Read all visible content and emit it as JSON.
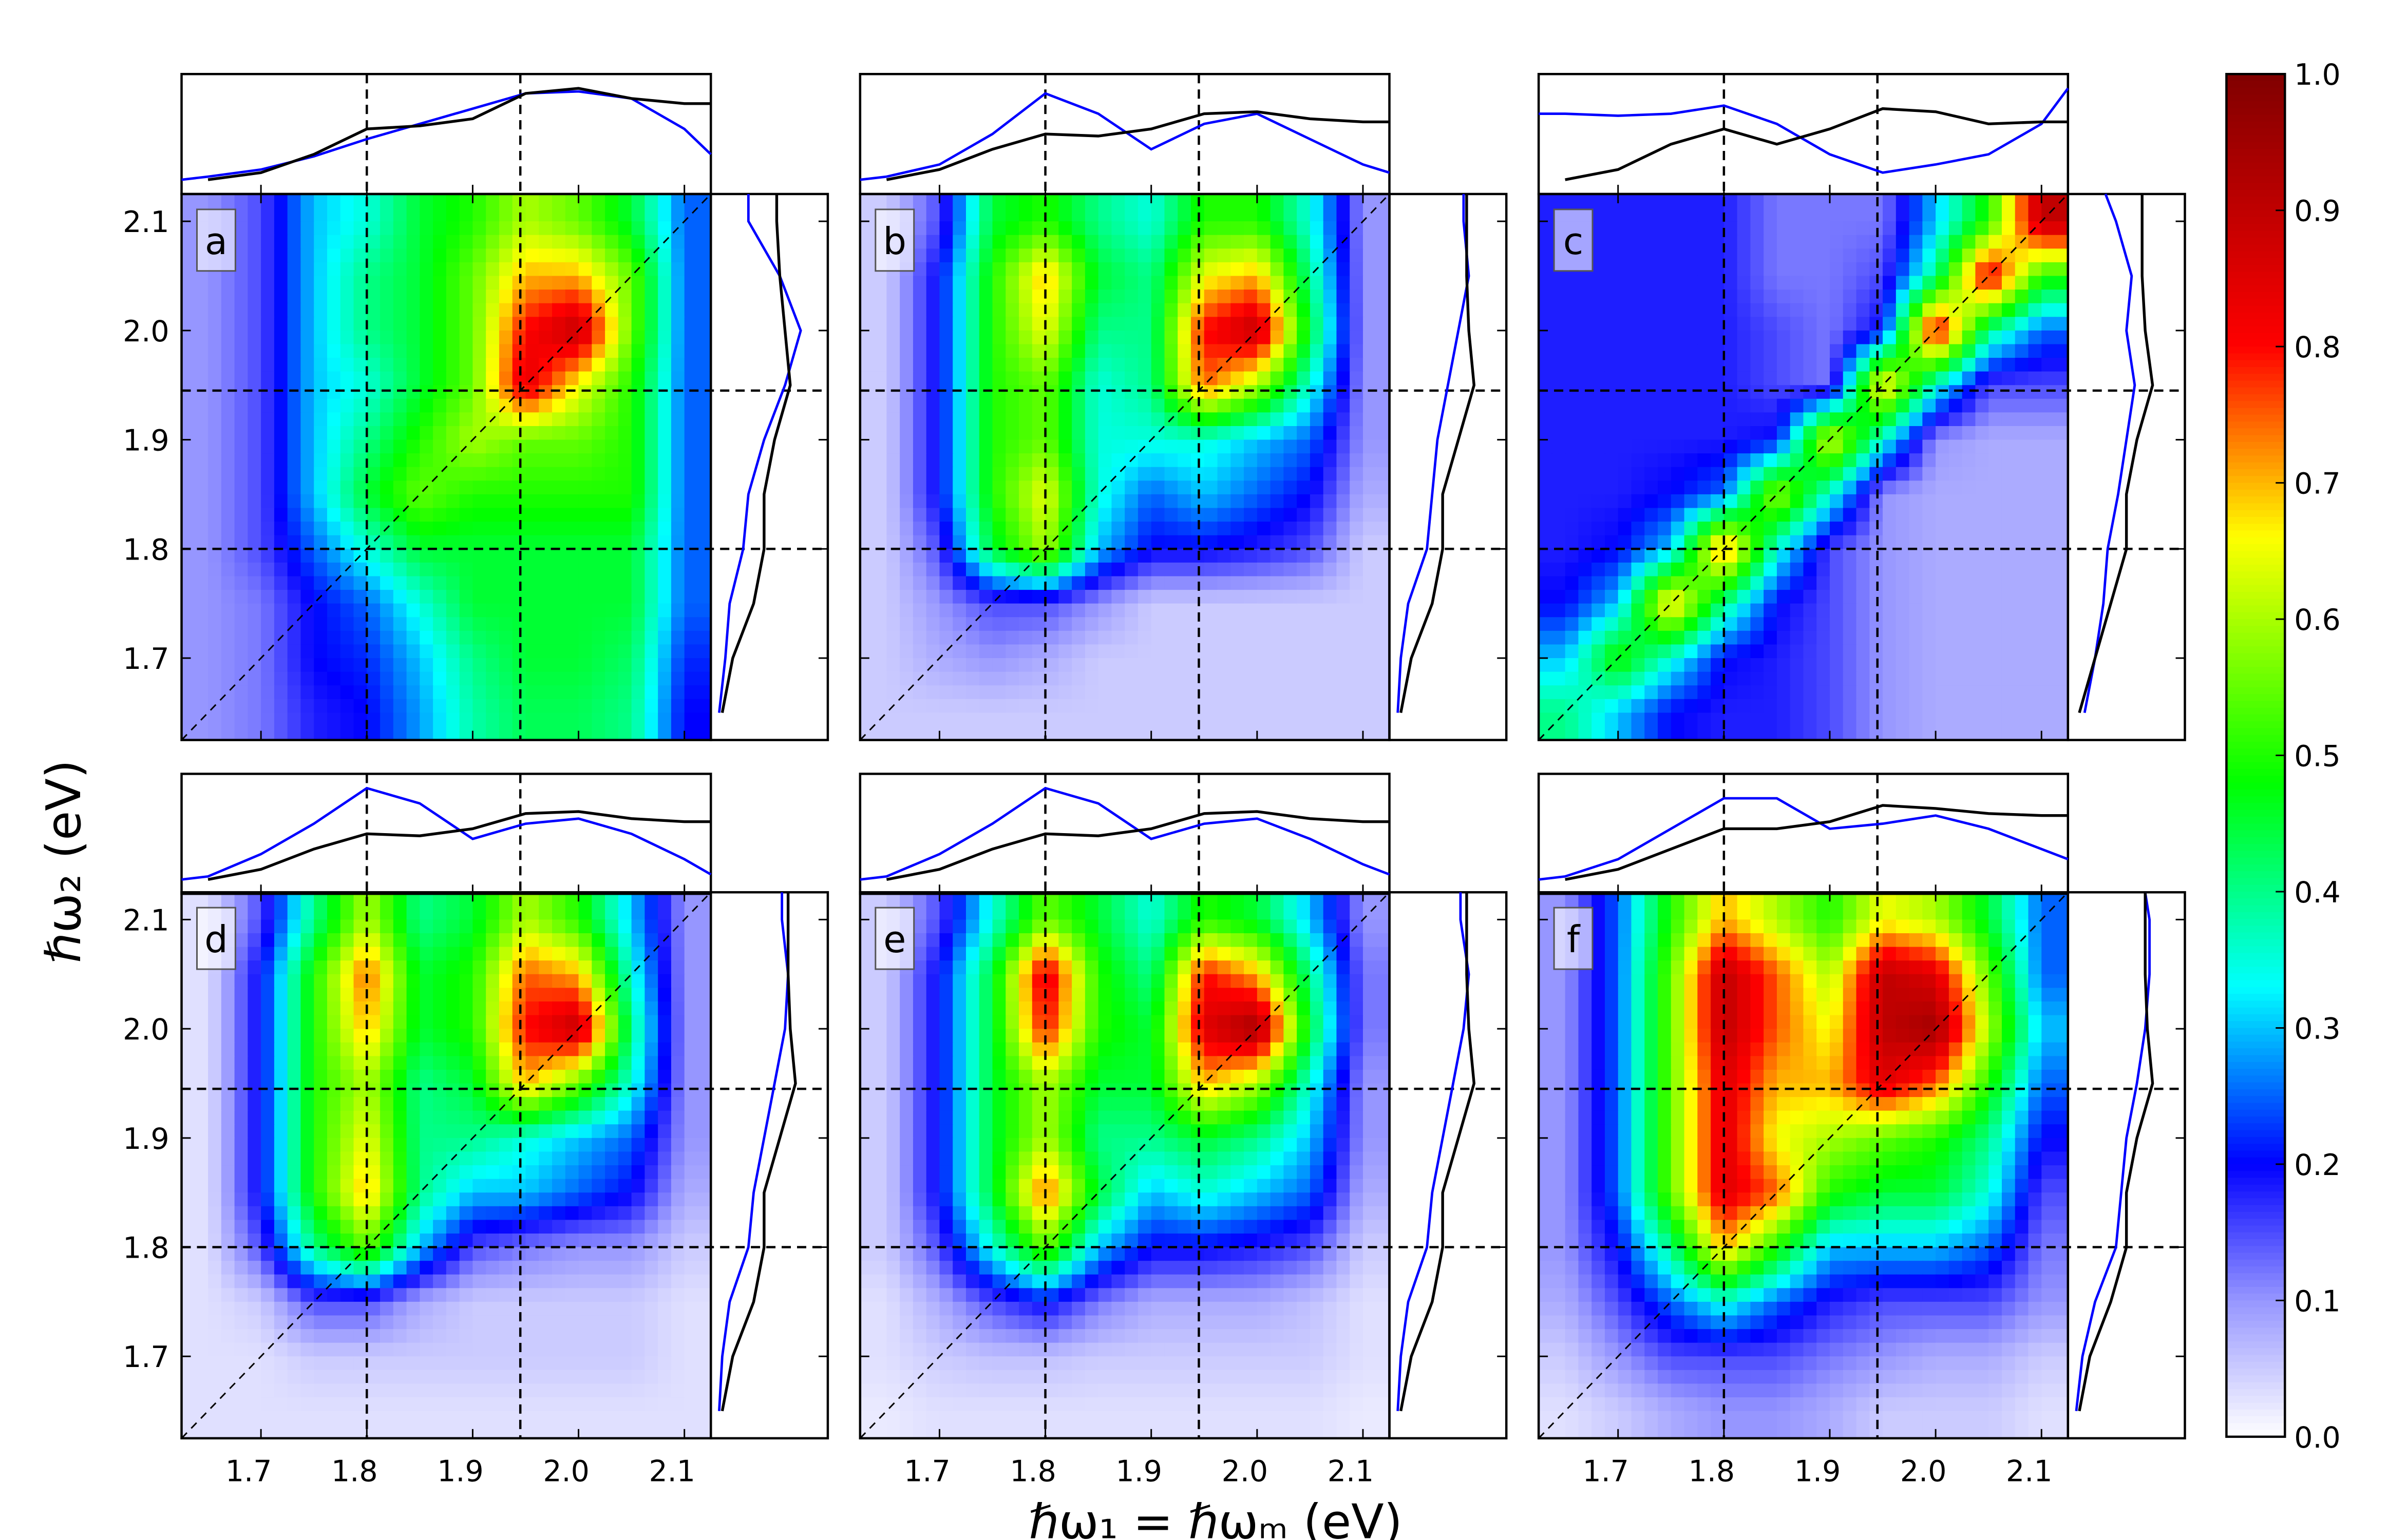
{
  "chart_data": {
    "type": "heatmap",
    "xlabel": "ℏω₁  = ℏωₘ   (eV)",
    "ylabel": "ℏω₂   (eV)",
    "xlim": [
      1.625,
      2.125
    ],
    "ylim": [
      1.625,
      2.125
    ],
    "x_ticks": [
      "1.7",
      "1.8",
      "1.9",
      "2.0",
      "2.1"
    ],
    "y_ticks": [
      "1.7",
      "1.8",
      "1.9",
      "2.0",
      "2.1"
    ],
    "tick_values": [
      1.7,
      1.8,
      1.9,
      2.0,
      2.1
    ],
    "dashed_lines": [
      1.8,
      1.945
    ],
    "diagonal": true,
    "grid": false,
    "colormap": {
      "stops": [
        [
          0,
          "#ffffff"
        ],
        [
          0.1,
          "#9696ff"
        ],
        [
          0.2,
          "#0000ff"
        ],
        [
          0.33,
          "#00ffff"
        ],
        [
          0.48,
          "#00ff00"
        ],
        [
          0.66,
          "#ffff00"
        ],
        [
          0.8,
          "#ff0000"
        ],
        [
          1.0,
          "#800000"
        ]
      ]
    },
    "colorbar": {
      "range": [
        0,
        1
      ],
      "ticks": [
        "0.0",
        "0.1",
        "0.2",
        "0.3",
        "0.4",
        "0.5",
        "0.6",
        "0.7",
        "0.8",
        "0.9",
        "1.0"
      ],
      "placement": "right"
    },
    "grid_x_centers": [
      1.65,
      1.7,
      1.75,
      1.8,
      1.85,
      1.9,
      1.95,
      2.0,
      2.05,
      2.1
    ],
    "grid_y_centers_top_to_bottom": [
      2.1,
      2.05,
      2.0,
      1.95,
      1.9,
      1.85,
      1.8,
      1.75,
      1.7,
      1.65
    ],
    "spectrum_x": [
      1.625,
      1.65,
      1.7,
      1.75,
      1.8,
      1.85,
      1.9,
      1.95,
      2.0,
      2.05,
      2.1,
      2.125
    ],
    "side_spectrum_y": [
      1.65,
      1.7,
      1.75,
      1.8,
      1.85,
      1.9,
      1.95,
      2.0,
      2.05,
      2.1,
      2.125
    ],
    "spectrum_colors": {
      "black": "#000000",
      "blue": "#0000ff"
    },
    "panels": [
      {
        "label": "a",
        "values": [
          [
            0.1,
            0.15,
            0.3,
            0.35,
            0.45,
            0.5,
            0.6,
            0.55,
            0.45,
            0.25
          ],
          [
            0.1,
            0.15,
            0.3,
            0.4,
            0.45,
            0.55,
            0.7,
            0.7,
            0.55,
            0.25
          ],
          [
            0.1,
            0.15,
            0.3,
            0.4,
            0.45,
            0.55,
            0.8,
            0.9,
            0.55,
            0.25
          ],
          [
            0.1,
            0.15,
            0.3,
            0.35,
            0.45,
            0.55,
            0.85,
            0.65,
            0.5,
            0.25
          ],
          [
            0.1,
            0.15,
            0.3,
            0.4,
            0.5,
            0.6,
            0.55,
            0.55,
            0.5,
            0.25
          ],
          [
            0.1,
            0.15,
            0.3,
            0.45,
            0.55,
            0.5,
            0.5,
            0.5,
            0.5,
            0.25
          ],
          [
            0.1,
            0.15,
            0.25,
            0.35,
            0.45,
            0.45,
            0.45,
            0.45,
            0.45,
            0.25
          ],
          [
            0.1,
            0.12,
            0.2,
            0.25,
            0.35,
            0.45,
            0.45,
            0.45,
            0.45,
            0.25
          ],
          [
            0.1,
            0.12,
            0.2,
            0.22,
            0.3,
            0.4,
            0.45,
            0.45,
            0.42,
            0.22
          ],
          [
            0.1,
            0.12,
            0.18,
            0.2,
            0.28,
            0.38,
            0.43,
            0.43,
            0.4,
            0.2
          ]
        ],
        "top_black": [
          null,
          0.05,
          0.12,
          0.3,
          0.55,
          0.58,
          0.65,
          0.9,
          0.95,
          0.85,
          0.8,
          0.8
        ],
        "top_blue": [
          0.05,
          0.08,
          0.15,
          0.28,
          0.45,
          0.6,
          0.75,
          0.9,
          0.92,
          0.85,
          0.55,
          0.3
        ],
        "side_black": [
          0.05,
          0.15,
          0.35,
          0.45,
          0.45,
          0.55,
          0.7,
          0.65,
          0.6,
          0.57,
          0.57
        ],
        "side_blue": [
          0.02,
          0.08,
          0.12,
          0.25,
          0.3,
          0.45,
          0.65,
          0.8,
          0.6,
          0.3,
          0.3
        ]
      },
      {
        "label": "b",
        "values": [
          [
            0.05,
            0.15,
            0.45,
            0.5,
            0.4,
            0.35,
            0.5,
            0.5,
            0.35,
            0.1
          ],
          [
            0.05,
            0.2,
            0.5,
            0.7,
            0.45,
            0.4,
            0.65,
            0.7,
            0.4,
            0.1
          ],
          [
            0.05,
            0.2,
            0.5,
            0.65,
            0.4,
            0.4,
            0.8,
            0.9,
            0.45,
            0.1
          ],
          [
            0.05,
            0.2,
            0.5,
            0.55,
            0.35,
            0.4,
            0.75,
            0.6,
            0.35,
            0.1
          ],
          [
            0.05,
            0.2,
            0.5,
            0.55,
            0.35,
            0.35,
            0.35,
            0.3,
            0.25,
            0.1
          ],
          [
            0.05,
            0.2,
            0.5,
            0.65,
            0.35,
            0.25,
            0.3,
            0.25,
            0.2,
            0.08
          ],
          [
            0.05,
            0.15,
            0.45,
            0.6,
            0.3,
            0.2,
            0.2,
            0.18,
            0.15,
            0.05
          ],
          [
            0.05,
            0.1,
            0.15,
            0.15,
            0.1,
            0.05,
            0.05,
            0.05,
            0.05,
            0.05
          ],
          [
            0.05,
            0.08,
            0.1,
            0.08,
            0.05,
            0.05,
            0.05,
            0.05,
            0.05,
            0.05
          ],
          [
            0.05,
            0.05,
            0.05,
            0.05,
            0.05,
            0.05,
            0.05,
            0.05,
            0.05,
            0.05
          ]
        ],
        "top_black": [
          null,
          0.05,
          0.15,
          0.35,
          0.5,
          0.48,
          0.55,
          0.7,
          0.72,
          0.65,
          0.62,
          0.62
        ],
        "top_blue": [
          0.05,
          0.08,
          0.2,
          0.5,
          0.9,
          0.7,
          0.35,
          0.6,
          0.7,
          0.45,
          0.2,
          0.12
        ],
        "side_black": [
          0.05,
          0.15,
          0.35,
          0.45,
          0.45,
          0.6,
          0.75,
          0.7,
          0.68,
          0.68,
          0.68
        ],
        "side_blue": [
          0.02,
          0.05,
          0.12,
          0.3,
          0.35,
          0.4,
          0.5,
          0.6,
          0.7,
          0.65,
          0.65
        ]
      },
      {
        "label": "c",
        "values": [
          [
            0.18,
            0.18,
            0.18,
            0.18,
            0.12,
            0.12,
            0.12,
            0.3,
            0.5,
            0.9
          ],
          [
            0.18,
            0.18,
            0.18,
            0.18,
            0.12,
            0.12,
            0.15,
            0.4,
            0.85,
            0.5
          ],
          [
            0.18,
            0.18,
            0.18,
            0.18,
            0.15,
            0.12,
            0.2,
            0.85,
            0.4,
            0.25
          ],
          [
            0.18,
            0.18,
            0.18,
            0.18,
            0.15,
            0.12,
            0.7,
            0.35,
            0.15,
            0.15
          ],
          [
            0.18,
            0.18,
            0.18,
            0.18,
            0.2,
            0.65,
            0.35,
            0.1,
            0.08,
            0.08
          ],
          [
            0.18,
            0.18,
            0.2,
            0.25,
            0.6,
            0.35,
            0.1,
            0.08,
            0.08,
            0.08
          ],
          [
            0.18,
            0.2,
            0.3,
            0.75,
            0.35,
            0.15,
            0.1,
            0.08,
            0.08,
            0.08
          ],
          [
            0.2,
            0.3,
            0.7,
            0.4,
            0.2,
            0.15,
            0.1,
            0.08,
            0.08,
            0.08
          ],
          [
            0.3,
            0.5,
            0.35,
            0.2,
            0.18,
            0.15,
            0.1,
            0.08,
            0.08,
            0.08
          ],
          [
            0.4,
            0.3,
            0.2,
            0.18,
            0.18,
            0.15,
            0.1,
            0.08,
            0.08,
            0.08
          ]
        ],
        "top_black": [
          null,
          0.05,
          0.15,
          0.4,
          0.55,
          0.4,
          0.55,
          0.75,
          0.72,
          0.6,
          0.62,
          0.62
        ],
        "top_blue": [
          0.7,
          0.7,
          0.68,
          0.7,
          0.78,
          0.6,
          0.3,
          0.12,
          0.2,
          0.3,
          0.6,
          0.95
        ],
        "side_black": [
          0.05,
          0.2,
          0.35,
          0.5,
          0.5,
          0.6,
          0.75,
          0.68,
          0.65,
          0.65,
          0.65
        ],
        "side_blue": [
          0.1,
          0.2,
          0.28,
          0.32,
          0.42,
          0.5,
          0.58,
          0.5,
          0.55,
          0.4,
          0.3
        ]
      },
      {
        "label": "d",
        "values": [
          [
            0.03,
            0.15,
            0.4,
            0.6,
            0.4,
            0.45,
            0.6,
            0.5,
            0.3,
            0.1
          ],
          [
            0.03,
            0.2,
            0.5,
            0.75,
            0.45,
            0.5,
            0.75,
            0.7,
            0.35,
            0.1
          ],
          [
            0.03,
            0.2,
            0.5,
            0.7,
            0.45,
            0.5,
            0.8,
            0.9,
            0.4,
            0.1
          ],
          [
            0.03,
            0.2,
            0.5,
            0.6,
            0.4,
            0.45,
            0.7,
            0.55,
            0.35,
            0.1
          ],
          [
            0.03,
            0.2,
            0.5,
            0.65,
            0.4,
            0.4,
            0.35,
            0.3,
            0.25,
            0.1
          ],
          [
            0.03,
            0.2,
            0.5,
            0.7,
            0.4,
            0.3,
            0.3,
            0.25,
            0.2,
            0.08
          ],
          [
            0.03,
            0.15,
            0.4,
            0.55,
            0.3,
            0.15,
            0.12,
            0.1,
            0.1,
            0.05
          ],
          [
            0.03,
            0.05,
            0.15,
            0.15,
            0.08,
            0.05,
            0.05,
            0.05,
            0.05,
            0.03
          ],
          [
            0.03,
            0.03,
            0.05,
            0.05,
            0.05,
            0.05,
            0.05,
            0.05,
            0.05,
            0.03
          ],
          [
            0.03,
            0.03,
            0.03,
            0.03,
            0.03,
            0.03,
            0.03,
            0.03,
            0.03,
            0.03
          ]
        ],
        "top_black": [
          null,
          0.05,
          0.15,
          0.35,
          0.5,
          0.48,
          0.55,
          0.7,
          0.72,
          0.65,
          0.62,
          0.62
        ],
        "top_blue": [
          0.05,
          0.08,
          0.3,
          0.6,
          0.95,
          0.8,
          0.45,
          0.6,
          0.65,
          0.5,
          0.25,
          0.1
        ],
        "side_black": [
          0.05,
          0.15,
          0.35,
          0.45,
          0.45,
          0.6,
          0.75,
          0.7,
          0.68,
          0.68,
          0.68
        ],
        "side_blue": [
          0.02,
          0.05,
          0.12,
          0.3,
          0.35,
          0.45,
          0.55,
          0.65,
          0.68,
          0.62,
          0.62
        ]
      },
      {
        "label": "e",
        "values": [
          [
            0.05,
            0.15,
            0.35,
            0.55,
            0.45,
            0.35,
            0.5,
            0.45,
            0.3,
            0.1
          ],
          [
            0.05,
            0.2,
            0.45,
            0.85,
            0.5,
            0.4,
            0.8,
            0.7,
            0.4,
            0.12
          ],
          [
            0.05,
            0.2,
            0.45,
            0.8,
            0.5,
            0.45,
            0.85,
            0.95,
            0.45,
            0.12
          ],
          [
            0.05,
            0.2,
            0.45,
            0.6,
            0.45,
            0.45,
            0.7,
            0.6,
            0.35,
            0.1
          ],
          [
            0.05,
            0.2,
            0.45,
            0.6,
            0.4,
            0.4,
            0.45,
            0.4,
            0.3,
            0.1
          ],
          [
            0.05,
            0.2,
            0.45,
            0.75,
            0.45,
            0.3,
            0.35,
            0.3,
            0.25,
            0.08
          ],
          [
            0.05,
            0.15,
            0.35,
            0.55,
            0.3,
            0.2,
            0.2,
            0.18,
            0.15,
            0.05
          ],
          [
            0.03,
            0.08,
            0.15,
            0.2,
            0.12,
            0.08,
            0.08,
            0.08,
            0.06,
            0.03
          ],
          [
            0.03,
            0.05,
            0.06,
            0.06,
            0.05,
            0.05,
            0.05,
            0.05,
            0.05,
            0.03
          ],
          [
            0.02,
            0.03,
            0.03,
            0.03,
            0.03,
            0.03,
            0.03,
            0.03,
            0.03,
            0.02
          ]
        ],
        "top_black": [
          null,
          0.05,
          0.15,
          0.35,
          0.5,
          0.48,
          0.55,
          0.7,
          0.72,
          0.65,
          0.62,
          0.62
        ],
        "top_blue": [
          0.05,
          0.08,
          0.3,
          0.6,
          0.95,
          0.8,
          0.45,
          0.6,
          0.65,
          0.45,
          0.2,
          0.1
        ],
        "side_black": [
          0.05,
          0.15,
          0.35,
          0.45,
          0.45,
          0.6,
          0.75,
          0.7,
          0.68,
          0.68,
          0.68
        ],
        "side_blue": [
          0.02,
          0.05,
          0.12,
          0.3,
          0.35,
          0.45,
          0.55,
          0.65,
          0.7,
          0.62,
          0.62
        ]
      },
      {
        "label": "f",
        "values": [
          [
            0.1,
            0.25,
            0.5,
            0.7,
            0.6,
            0.5,
            0.65,
            0.6,
            0.45,
            0.25
          ],
          [
            0.1,
            0.25,
            0.55,
            0.9,
            0.75,
            0.6,
            0.9,
            0.85,
            0.55,
            0.25
          ],
          [
            0.1,
            0.25,
            0.55,
            0.9,
            0.75,
            0.65,
            0.9,
            0.95,
            0.6,
            0.3
          ],
          [
            0.1,
            0.25,
            0.55,
            0.85,
            0.7,
            0.7,
            0.85,
            0.75,
            0.5,
            0.25
          ],
          [
            0.1,
            0.25,
            0.55,
            0.85,
            0.65,
            0.6,
            0.55,
            0.5,
            0.4,
            0.2
          ],
          [
            0.1,
            0.25,
            0.55,
            0.85,
            0.75,
            0.5,
            0.45,
            0.45,
            0.35,
            0.15
          ],
          [
            0.1,
            0.2,
            0.4,
            0.7,
            0.5,
            0.3,
            0.3,
            0.3,
            0.25,
            0.12
          ],
          [
            0.08,
            0.15,
            0.25,
            0.35,
            0.25,
            0.18,
            0.15,
            0.15,
            0.15,
            0.1
          ],
          [
            0.05,
            0.1,
            0.15,
            0.15,
            0.15,
            0.12,
            0.1,
            0.08,
            0.08,
            0.05
          ],
          [
            0.03,
            0.05,
            0.08,
            0.1,
            0.1,
            0.08,
            0.05,
            0.05,
            0.05,
            0.03
          ]
        ],
        "top_black": [
          null,
          0.05,
          0.15,
          0.35,
          0.55,
          0.55,
          0.62,
          0.78,
          0.75,
          0.7,
          0.68,
          0.68
        ],
        "top_blue": [
          0.05,
          0.08,
          0.25,
          0.55,
          0.85,
          0.85,
          0.55,
          0.6,
          0.68,
          0.55,
          0.35,
          0.25
        ],
        "side_black": [
          0.05,
          0.15,
          0.35,
          0.5,
          0.5,
          0.6,
          0.75,
          0.7,
          0.68,
          0.68,
          0.68
        ],
        "side_blue": [
          0.02,
          0.08,
          0.2,
          0.4,
          0.45,
          0.5,
          0.6,
          0.68,
          0.72,
          0.72,
          0.68
        ]
      }
    ]
  }
}
